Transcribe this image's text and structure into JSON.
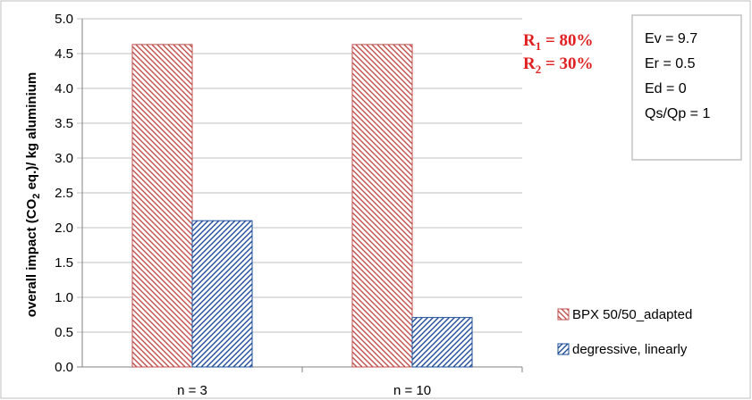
{
  "chart_data": {
    "type": "bar",
    "categories": [
      "n = 3",
      "n = 10"
    ],
    "series": [
      {
        "name": "BPX 50/50_adapted",
        "values": [
          4.63,
          4.63
        ],
        "color": "#c0504d",
        "pattern": "hatch-backslash"
      },
      {
        "name": "degressive, linearly",
        "values": [
          2.1,
          0.71
        ],
        "color": "#1f4e99",
        "pattern": "hatch-slash"
      }
    ],
    "ylabel": {
      "prefix": "overall impact (CO",
      "subscript": "2",
      "suffix": " eq.)/ kg aluminium"
    },
    "ylim": [
      0,
      5
    ],
    "yticks": [
      "0.0",
      "0.5",
      "1.0",
      "1.5",
      "2.0",
      "2.5",
      "3.0",
      "3.5",
      "4.0",
      "4.5",
      "5.0"
    ],
    "grid": true,
    "legend_position": "right",
    "annotations": {
      "rates": [
        {
          "base": "R",
          "sub": "1",
          "text": " = 80%"
        },
        {
          "base": "R",
          "sub": "2",
          "text": " = 30%"
        }
      ],
      "rate_color": "#e02020",
      "parameters": [
        "Ev = 9.7",
        "Er = 0.5",
        "Ed = 0",
        "Qs/Qp = 1"
      ]
    }
  }
}
